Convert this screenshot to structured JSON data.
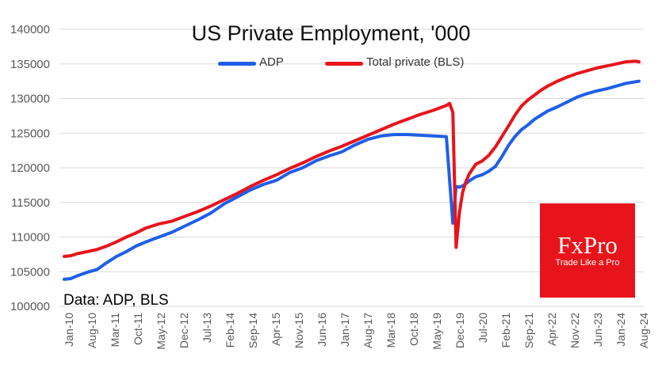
{
  "chart_data": {
    "type": "line",
    "title": "US Private Employment, '000",
    "xlabel": "",
    "ylabel": "",
    "ylim": [
      100000,
      140000
    ],
    "yticks": [
      100000,
      105000,
      110000,
      115000,
      120000,
      125000,
      130000,
      135000,
      140000
    ],
    "ytick_labels": [
      "100000",
      "105000",
      "110000",
      "115000",
      "120000",
      "125000",
      "130000",
      "135000",
      "140000"
    ],
    "xtick_labels": [
      "Jan-10",
      "Aug-10",
      "Mar-11",
      "Oct-11",
      "May-12",
      "Dec-12",
      "Jul-13",
      "Feb-14",
      "Sep-14",
      "Apr-15",
      "Nov-15",
      "Jun-16",
      "Jan-17",
      "Aug-17",
      "Mar-18",
      "Oct-18",
      "May-19",
      "Dec-19",
      "Jul-20",
      "Feb-21",
      "Sep-21",
      "Apr-22",
      "Nov-22",
      "Jun-23",
      "Jan-24",
      "Aug-24"
    ],
    "x_unit": "months since Jan-2010",
    "x_range": [
      0,
      176
    ],
    "grid": "horizontal",
    "legend_position": "top",
    "series": [
      {
        "name": "ADP",
        "color": "#1f5fe8",
        "x": [
          0,
          2,
          4,
          7,
          10,
          13,
          16,
          19,
          22,
          25,
          29,
          33,
          37,
          41,
          45,
          49,
          53,
          57,
          61,
          65,
          69,
          73,
          77,
          81,
          85,
          89,
          93,
          97,
          101,
          105,
          109,
          113,
          117,
          119,
          120,
          121,
          122,
          123,
          124,
          126,
          128,
          130,
          132,
          134,
          136,
          138,
          140,
          142,
          144,
          146,
          148,
          151,
          154,
          157,
          160,
          163,
          166,
          169,
          172,
          176
        ],
        "values": [
          103900,
          104000,
          104400,
          104900,
          105300,
          106300,
          107200,
          107900,
          108700,
          109300,
          110000,
          110700,
          111600,
          112500,
          113500,
          114800,
          115800,
          116800,
          117600,
          118200,
          119300,
          120000,
          121000,
          121700,
          122300,
          123300,
          124100,
          124600,
          124800,
          124800,
          124700,
          124600,
          124500,
          112000,
          117300,
          117200,
          117400,
          117700,
          118100,
          118700,
          119000,
          119500,
          120200,
          121600,
          123200,
          124500,
          125500,
          126200,
          127000,
          127600,
          128200,
          128800,
          129500,
          130200,
          130700,
          131100,
          131400,
          131800,
          132200,
          132500
        ]
      },
      {
        "name": "Total private (BLS)",
        "color": "#e8141b",
        "x": [
          0,
          2,
          4,
          7,
          10,
          13,
          16,
          19,
          22,
          25,
          29,
          33,
          37,
          41,
          45,
          49,
          53,
          57,
          61,
          65,
          69,
          73,
          77,
          81,
          85,
          89,
          93,
          97,
          101,
          105,
          109,
          113,
          117,
          118,
          119,
          120,
          121,
          122,
          123,
          124,
          126,
          128,
          130,
          132,
          134,
          136,
          138,
          140,
          142,
          144,
          146,
          148,
          151,
          154,
          157,
          160,
          163,
          166,
          169,
          172,
          175,
          176
        ],
        "values": [
          107200,
          107300,
          107600,
          107900,
          108200,
          108700,
          109300,
          110000,
          110600,
          111300,
          111900,
          112300,
          113000,
          113700,
          114500,
          115400,
          116300,
          117300,
          118200,
          119000,
          119900,
          120700,
          121600,
          122400,
          123100,
          123900,
          124700,
          125500,
          126300,
          127000,
          127700,
          128300,
          129000,
          129300,
          128000,
          108500,
          113500,
          116500,
          118000,
          119100,
          120500,
          121000,
          121800,
          123000,
          124500,
          126000,
          127600,
          128900,
          129800,
          130500,
          131200,
          131800,
          132500,
          133100,
          133600,
          134000,
          134400,
          134700,
          135000,
          135300,
          135400,
          135300
        ]
      }
    ],
    "annotations": [
      "Data: ADP, BLS"
    ]
  },
  "legend": {
    "adp_label": "ADP",
    "bls_label": "Total private (BLS)"
  },
  "source_note": "Data: ADP, BLS",
  "logo": {
    "brand": "FxPro",
    "tagline": "Trade Like a Pro",
    "color": "#e8141b"
  }
}
